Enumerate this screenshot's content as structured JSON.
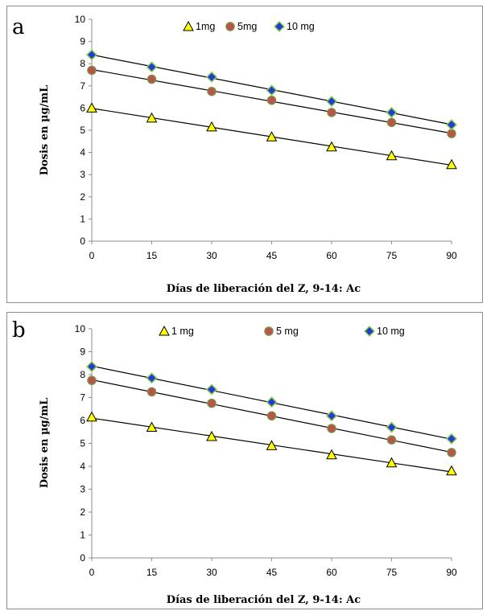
{
  "chart_data": [
    {
      "type": "scatter",
      "panel_label": "a",
      "title": "",
      "xlabel": "Días de liberación  del  Z, 9-14: Ac",
      "ylabel": "Dosis en  µg/mL",
      "x": [
        0,
        15,
        30,
        45,
        60,
        75,
        90
      ],
      "xticks": [
        "0",
        "15",
        "30",
        "45",
        "60",
        "75",
        "90"
      ],
      "yticks": [
        "0",
        "1",
        "2",
        "3",
        "4",
        "5",
        "6",
        "7",
        "8",
        "9",
        "10"
      ],
      "xlim": [
        0,
        90
      ],
      "ylim": [
        0,
        10
      ],
      "grid": false,
      "legend_position": "top-center",
      "trendlines": true,
      "series": [
        {
          "name": "1mg",
          "marker": "triangle",
          "color": "#ffff00",
          "edge": "#000000",
          "values": [
            6.0,
            5.55,
            5.15,
            4.7,
            4.25,
            3.85,
            3.45
          ]
        },
        {
          "name": "5mg",
          "marker": "circle",
          "color": "#c0504d",
          "edge": "#77933c",
          "values": [
            7.7,
            7.3,
            6.75,
            6.35,
            5.8,
            5.35,
            4.85
          ]
        },
        {
          "name": "10 mg",
          "marker": "diamond",
          "color": "#1f3fd1",
          "edge": "#92d050",
          "values": [
            8.4,
            7.85,
            7.4,
            6.8,
            6.3,
            5.8,
            5.25
          ]
        }
      ]
    },
    {
      "type": "scatter",
      "panel_label": "b",
      "title": "",
      "xlabel": "Días de liberación  del  Z, 9-14: Ac",
      "ylabel": "Dosis en  µg/mL",
      "x": [
        0,
        15,
        30,
        45,
        60,
        75,
        90
      ],
      "xticks": [
        "0",
        "15",
        "30",
        "45",
        "60",
        "75",
        "90"
      ],
      "yticks": [
        "0",
        "1",
        "2",
        "3",
        "4",
        "5",
        "6",
        "7",
        "8",
        "9",
        "10"
      ],
      "xlim": [
        0,
        90
      ],
      "ylim": [
        0,
        10
      ],
      "grid": false,
      "legend_position": "top-center",
      "trendlines": true,
      "series": [
        {
          "name": "1 mg",
          "marker": "triangle",
          "color": "#ffff00",
          "edge": "#000000",
          "values": [
            6.15,
            5.7,
            5.3,
            4.9,
            4.5,
            4.15,
            3.8
          ]
        },
        {
          "name": "5 mg",
          "marker": "circle",
          "color": "#c0504d",
          "edge": "#77933c",
          "values": [
            7.75,
            7.25,
            6.75,
            6.2,
            5.65,
            5.15,
            4.6
          ]
        },
        {
          "name": "10 mg",
          "marker": "diamond",
          "color": "#1f3fd1",
          "edge": "#92d050",
          "values": [
            8.35,
            7.85,
            7.35,
            6.8,
            6.2,
            5.7,
            5.2
          ]
        }
      ]
    }
  ]
}
